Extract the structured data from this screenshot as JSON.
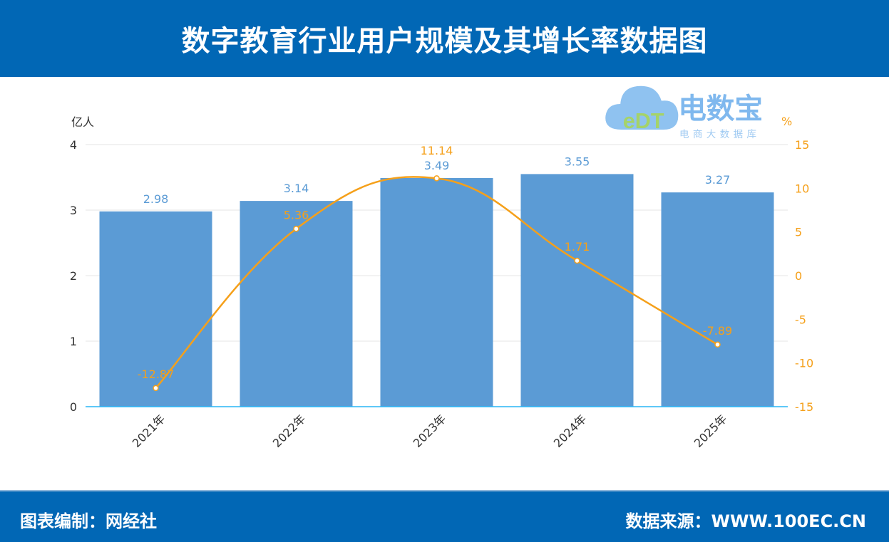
{
  "header": {
    "title": "数字教育行业用户规模及其增长率数据图"
  },
  "footer": {
    "left": "图表编制：网经社",
    "right": "数据来源：WWW.100EC.CN"
  },
  "logo": {
    "text": "电数宝",
    "subtitle": "电商大数据库",
    "mark": "eDT"
  },
  "chart_data": {
    "type": "bar+line",
    "categories": [
      "2021年",
      "2022年",
      "2023年",
      "2024年",
      "2025年"
    ],
    "series": [
      {
        "type": "bar",
        "axis": "left",
        "values": [
          2.98,
          3.14,
          3.49,
          3.55,
          3.27
        ],
        "color": "#5b9bd5"
      },
      {
        "type": "line",
        "axis": "right",
        "values": [
          -12.87,
          5.36,
          11.14,
          1.71,
          -7.89
        ],
        "color": "#f5a01a",
        "smooth": true
      }
    ],
    "ylabel": "亿人",
    "y2label": "%",
    "ylim": [
      0,
      4
    ],
    "yticks": [
      0,
      1,
      2,
      3,
      4
    ],
    "y2lim": [
      -15,
      15
    ],
    "y2ticks": [
      -15,
      -10,
      -5,
      0,
      5,
      10,
      15
    ],
    "grid": true
  }
}
